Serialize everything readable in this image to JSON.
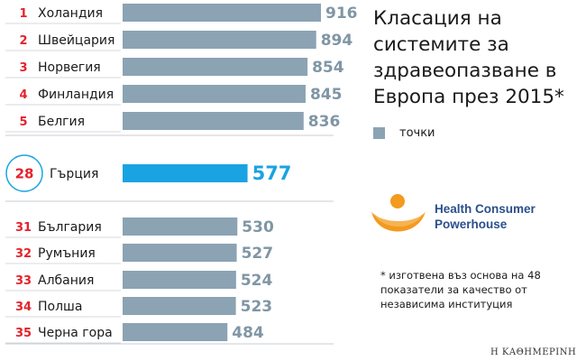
{
  "title": "Класация на системите за здравеопазване в Европа през 2015*",
  "legend": {
    "label": "точки",
    "color": "#8ba3b3"
  },
  "logo": {
    "name": "Health Consumer Powerhouse",
    "icon": "hcp-figure-logo",
    "color_orange": "#f39a1f",
    "color_text": "#2b4f8a"
  },
  "footnote": "* изготвена въз основа на 48 показатели за качество от независима институция",
  "credit": "Η ΚΑΘΗΜΕΡΙΝΗ",
  "colors": {
    "bar": "#8ba3b3",
    "highlight_bar": "#1aa3e2",
    "rank": "#e5222c"
  },
  "chart_data": {
    "type": "bar",
    "orientation": "horizontal",
    "value_label": "точки",
    "groups": [
      {
        "name": "top",
        "rows": [
          {
            "rank": "1",
            "country": "Холандия",
            "value": 916
          },
          {
            "rank": "2",
            "country": "Швейцария",
            "value": 894
          },
          {
            "rank": "3",
            "country": "Норвегия",
            "value": 854
          },
          {
            "rank": "4",
            "country": "Финландия",
            "value": 845
          },
          {
            "rank": "5",
            "country": "Белгия",
            "value": 836
          }
        ]
      },
      {
        "name": "highlight",
        "rows": [
          {
            "rank": "28",
            "country": "Гърция",
            "value": 577,
            "highlight": true
          }
        ]
      },
      {
        "name": "bottom",
        "rows": [
          {
            "rank": "31",
            "country": "България",
            "value": 530
          },
          {
            "rank": "32",
            "country": "Румъния",
            "value": 527
          },
          {
            "rank": "33",
            "country": "Албания",
            "value": 524
          },
          {
            "rank": "34",
            "country": "Полша",
            "value": 523
          },
          {
            "rank": "35",
            "country": "Черна гора",
            "value": 484
          }
        ]
      }
    ]
  }
}
